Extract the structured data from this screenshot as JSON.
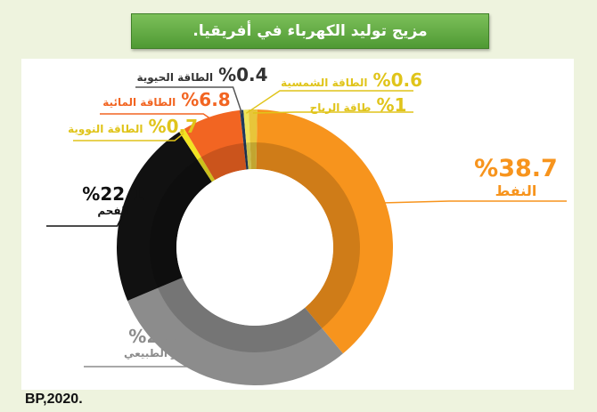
{
  "title": "مزيج توليد الكهرباء في أفريقيا.",
  "source": "BP,2020.",
  "chart_data": {
    "type": "pie",
    "style": "donut",
    "title": "مزيج توليد الكهرباء في أفريقيا.",
    "unit": "%",
    "slices": [
      {
        "name": "النفط",
        "value": 38.7,
        "label": "38.7",
        "color": "#f7941d"
      },
      {
        "name": "الغاز الطبيعي",
        "value": 29.7,
        "label": "29.7",
        "color": "#8c8c8c"
      },
      {
        "name": "الفحم",
        "value": 22.1,
        "label": "22.1",
        "color": "#111111"
      },
      {
        "name": "الطاقة النووية",
        "value": 0.7,
        "label": "0.7",
        "color": "#f2e422"
      },
      {
        "name": "الطاقة المائية",
        "value": 6.8,
        "label": "6.8",
        "color": "#f26522"
      },
      {
        "name": "الطاقة الحيوية",
        "value": 0.4,
        "label": "0.4",
        "color": "#1f3a5f"
      },
      {
        "name": "الطاقة الشمسية",
        "value": 0.6,
        "label": "0.6",
        "color": "#f0e45a"
      },
      {
        "name": "طاقة الرياح",
        "value": 1,
        "label": "1",
        "color": "#e8c53a"
      }
    ]
  }
}
